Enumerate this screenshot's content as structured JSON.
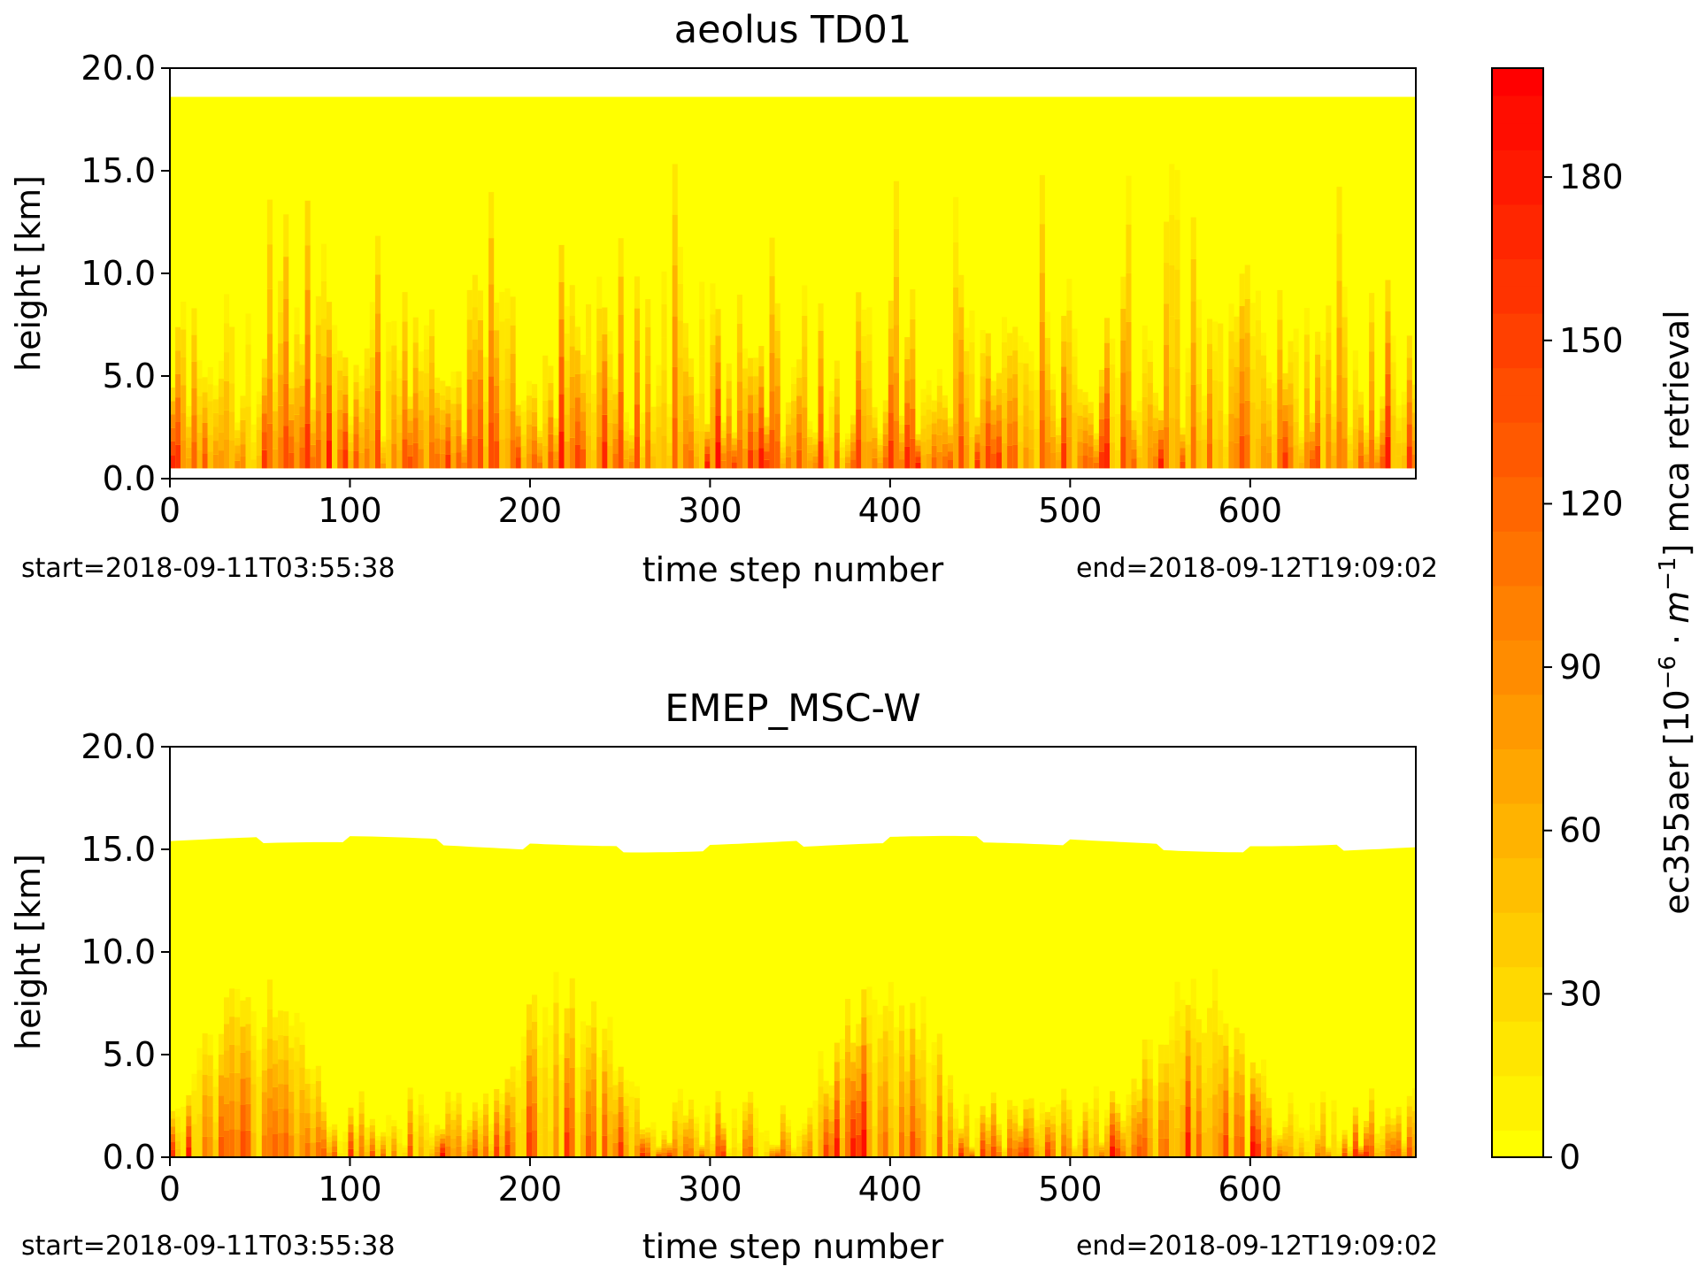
{
  "chart_data": [
    {
      "type": "heatmap",
      "title": "aeolus TD01",
      "xlabel": "time step number",
      "ylabel": "height [km]",
      "xlim": [
        0,
        692
      ],
      "ylim": [
        0.0,
        20.0
      ],
      "x_ticks": [
        "0",
        "100",
        "200",
        "300",
        "400",
        "500",
        "600"
      ],
      "y_ticks": [
        "0.0",
        "5.0",
        "10.0",
        "15.0",
        "20.0"
      ],
      "start_label": "start=2018-09-11T03:55:38",
      "end_label": "end=2018-09-12T19:09:02",
      "data_top_km": 18.6,
      "data_bottom_km": 0.5,
      "grid": false
    },
    {
      "type": "heatmap",
      "title": "EMEP_MSC-W",
      "xlabel": "time step number",
      "ylabel": "height [km]",
      "xlim": [
        0,
        692
      ],
      "ylim": [
        0.0,
        20.0
      ],
      "x_ticks": [
        "0",
        "100",
        "200",
        "300",
        "400",
        "500",
        "600"
      ],
      "y_ticks": [
        "0.0",
        "5.0",
        "10.0",
        "15.0",
        "20.0"
      ],
      "start_label": "start=2018-09-11T03:55:38",
      "end_label": "end=2018-09-12T19:09:02",
      "data_top_km": 15.3,
      "data_bottom_km": 0.0,
      "grid": false
    }
  ],
  "colorbar": {
    "label": "ec355aer [10",
    "label_exp1": "−6",
    "label_mid": " · ",
    "label_m": "m",
    "label_exp2": "−1",
    "label_tail": "] mca retrieval",
    "ticks": [
      "0",
      "30",
      "60",
      "90",
      "120",
      "150",
      "180"
    ],
    "vmin": 0,
    "vmax": 200,
    "colors": {
      "low": "#ffff00",
      "high": "#ff0000"
    }
  }
}
